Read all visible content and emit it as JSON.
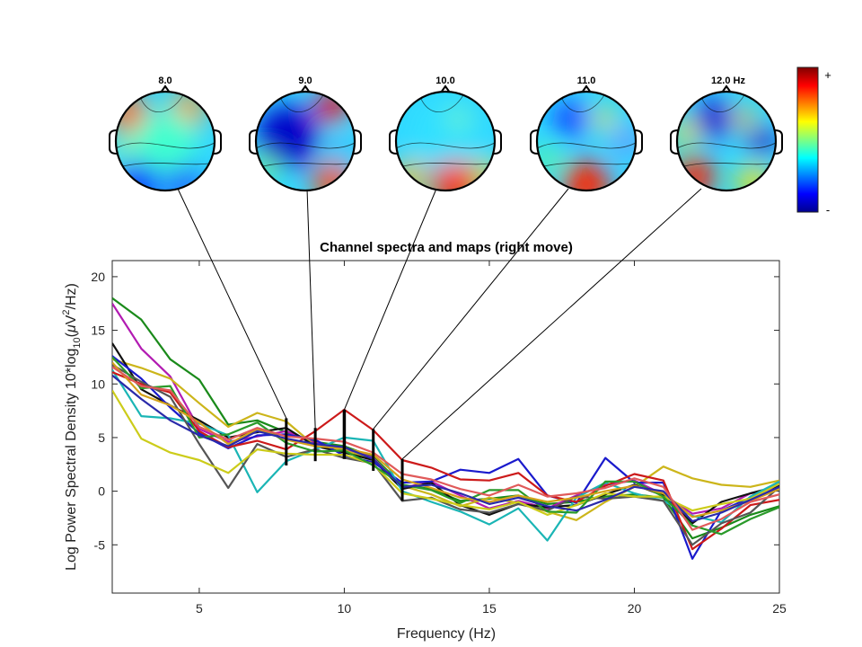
{
  "chart_data": {
    "type": "line",
    "title": "Channel spectra and maps (right move)",
    "xlabel": "Frequency (Hz)",
    "ylabel_parts": {
      "prefix": "Log Power Spectral Density 10*log",
      "sub": "10",
      "mid1": "(",
      "mu": "μ",
      "mid2": "V",
      "sup": "2",
      "suffix": "/Hz)"
    },
    "xlim": [
      2,
      25
    ],
    "ylim": [
      -9.5,
      21.5
    ],
    "xticks": [
      5,
      10,
      15,
      20,
      25
    ],
    "xtick_labels": [
      "5",
      "10",
      "15",
      "20",
      "25"
    ],
    "yticks": [
      -5,
      0,
      5,
      10,
      15,
      20
    ],
    "ytick_labels": [
      "-5",
      "0",
      "5",
      "10",
      "15",
      "20"
    ],
    "x": [
      2,
      3,
      4,
      5,
      6,
      7,
      8,
      9,
      10,
      11,
      12,
      13,
      14,
      15,
      16,
      17,
      18,
      19,
      20,
      21,
      22,
      23,
      24,
      25
    ],
    "series": [
      {
        "color": "#1a8a1a",
        "values": [
          18.0,
          16.0,
          12.3,
          10.4,
          6.2,
          6.6,
          5.5,
          4.6,
          4.2,
          3.2,
          0.6,
          0.2,
          -0.9,
          -0.7,
          -0.4,
          -1.2,
          -1.0,
          -0.5,
          -0.3,
          -0.6,
          -4.4,
          -3.4,
          -2.2,
          -1.4
        ]
      },
      {
        "color": "#b21bb2",
        "values": [
          17.5,
          13.3,
          10.7,
          5.8,
          4.6,
          5.1,
          5.6,
          4.5,
          4.0,
          3.1,
          0.3,
          0.9,
          -0.4,
          -1.6,
          -0.9,
          -1.6,
          -0.4,
          0.6,
          1.0,
          -0.3,
          -2.1,
          -1.6,
          -0.2,
          0.3
        ]
      },
      {
        "color": "#ccb51a",
        "values": [
          12.3,
          11.5,
          10.5,
          8.2,
          6.0,
          7.3,
          6.5,
          4.2,
          3.8,
          3.0,
          0.5,
          -0.3,
          -1.4,
          -0.6,
          -1.1,
          -1.9,
          -2.7,
          -1.0,
          0.4,
          2.3,
          1.2,
          0.6,
          0.4,
          1.0
        ]
      },
      {
        "color": "#111111",
        "values": [
          13.8,
          9.5,
          8.0,
          6.6,
          5.0,
          5.5,
          5.9,
          4.2,
          3.6,
          2.9,
          0.2,
          0.8,
          -1.3,
          -2.2,
          -1.2,
          -1.5,
          -1.3,
          -0.3,
          0.6,
          -0.4,
          -3.0,
          -1.0,
          -0.2,
          0.5
        ]
      },
      {
        "color": "#1a1acc",
        "values": [
          12.6,
          10.5,
          7.8,
          5.4,
          4.0,
          5.2,
          5.3,
          4.8,
          3.3,
          2.7,
          0.8,
          0.9,
          2.0,
          1.7,
          3.0,
          -0.4,
          -1.1,
          3.1,
          0.8,
          0.8,
          -6.3,
          -1.8,
          -0.6,
          0.7
        ]
      },
      {
        "color": "#1ab5b5",
        "values": [
          11.3,
          7.0,
          6.8,
          6.3,
          5.2,
          -0.1,
          2.8,
          3.9,
          5.0,
          4.7,
          0.0,
          -1.0,
          -1.9,
          -3.1,
          -1.6,
          -4.6,
          -0.6,
          0.8,
          -0.2,
          -0.9,
          -2.3,
          -2.9,
          -0.5,
          0.9
        ]
      },
      {
        "color": "#cc1a1a",
        "values": [
          11.1,
          10.0,
          9.2,
          5.6,
          4.1,
          4.7,
          3.9,
          5.6,
          7.6,
          5.7,
          2.9,
          2.2,
          1.1,
          1.0,
          1.7,
          -0.4,
          -1.0,
          0.5,
          1.6,
          1.0,
          -5.4,
          -3.5,
          -1.3,
          -0.8
        ]
      },
      {
        "color": "#555555",
        "values": [
          11.8,
          10.2,
          8.8,
          4.4,
          0.3,
          4.4,
          3.2,
          3.9,
          3.1,
          2.6,
          -0.9,
          -0.6,
          -1.7,
          -2.0,
          -1.2,
          -1.8,
          -0.5,
          -0.7,
          -0.5,
          -0.9,
          -5.0,
          -3.0,
          -2.0,
          0.4
        ]
      },
      {
        "color": "#cccc1a",
        "values": [
          9.4,
          4.9,
          3.6,
          2.9,
          1.7,
          3.9,
          3.5,
          3.4,
          3.4,
          2.5,
          -0.2,
          -0.7,
          -1.3,
          -1.7,
          -1.0,
          -2.2,
          -1.3,
          -0.2,
          -0.5,
          -0.5,
          -1.8,
          -1.2,
          -0.7,
          0.7
        ]
      },
      {
        "color": "#2a9a2a",
        "values": [
          12.5,
          9.6,
          9.8,
          5.0,
          5.3,
          6.4,
          4.5,
          3.7,
          3.8,
          2.4,
          0.6,
          0.1,
          -1.1,
          0.1,
          0.1,
          -1.9,
          -2.0,
          0.9,
          0.9,
          -0.5,
          -3.2,
          -4.0,
          -2.6,
          -1.5
        ]
      },
      {
        "color": "#d4a21a",
        "values": [
          12.0,
          9.0,
          8.0,
          6.4,
          4.4,
          5.8,
          4.8,
          4.2,
          4.0,
          3.4,
          1.1,
          0.3,
          -0.6,
          -1.0,
          -0.4,
          -1.0,
          -0.6,
          0.0,
          0.5,
          -0.2,
          -2.4,
          -1.8,
          -0.9,
          0.2
        ]
      },
      {
        "color": "#2a2aaa",
        "values": [
          10.8,
          8.6,
          6.6,
          5.2,
          4.2,
          5.6,
          4.9,
          4.4,
          4.1,
          3.0,
          0.4,
          0.6,
          -0.2,
          -1.2,
          -0.6,
          -1.4,
          -1.8,
          -0.8,
          0.4,
          0.0,
          -2.8,
          -2.0,
          -0.8,
          0.4
        ]
      },
      {
        "color": "#e05a5a",
        "values": [
          11.6,
          9.8,
          9.4,
          6.0,
          4.8,
          5.9,
          5.1,
          4.9,
          4.6,
          3.6,
          1.6,
          1.1,
          0.2,
          -0.4,
          0.6,
          -0.5,
          -0.2,
          0.3,
          1.2,
          0.4,
          -3.6,
          -2.6,
          -1.0,
          -0.3
        ]
      }
    ],
    "markers": [
      {
        "freq": 8,
        "label": "8.0",
        "ymin": 2.4,
        "ymax": 6.8
      },
      {
        "freq": 9,
        "label": "9.0",
        "ymin": 2.8,
        "ymax": 5.9
      },
      {
        "freq": 10,
        "label": "10.0",
        "ymin": 3.0,
        "ymax": 7.6
      },
      {
        "freq": 11,
        "label": "11.0",
        "ymin": 1.9,
        "ymax": 5.8
      },
      {
        "freq": 12,
        "label": "12.0 Hz",
        "ymin": -0.9,
        "ymax": 3.0
      }
    ],
    "colorbar": {
      "max_label": "+",
      "min_label": "-"
    }
  }
}
